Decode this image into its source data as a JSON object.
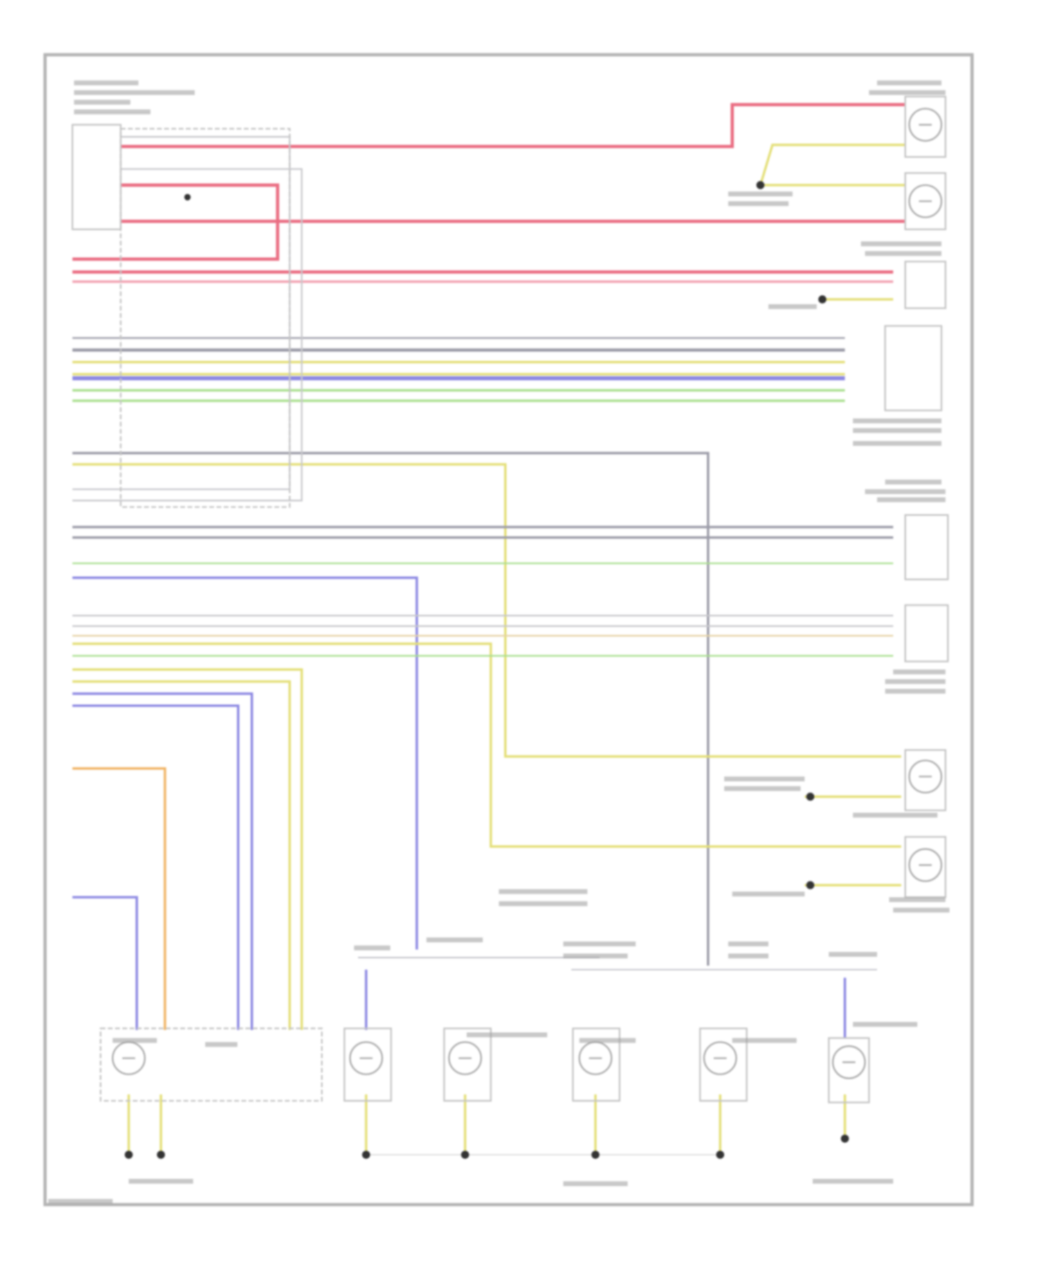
{
  "diagram": {
    "kind": "wiring-diagram",
    "text_legible": false,
    "wire_colors": {
      "red": "#ea6d82",
      "pink": "#f2a0b0",
      "yellow": "#e4df78",
      "gray": "#9c9ca8",
      "lightgray": "#c8c8cc",
      "blue": "#8c88e2",
      "green": "#a9df8e",
      "orange": "#f1b465",
      "tan": "#e6d3a6"
    },
    "frame_color": "#b4b4b4",
    "components": [
      "control-module-icon",
      "fuse-connector-icon",
      "lamp-icon",
      "sensor-box-icon",
      "switch-icon",
      "ground-icon"
    ]
  }
}
